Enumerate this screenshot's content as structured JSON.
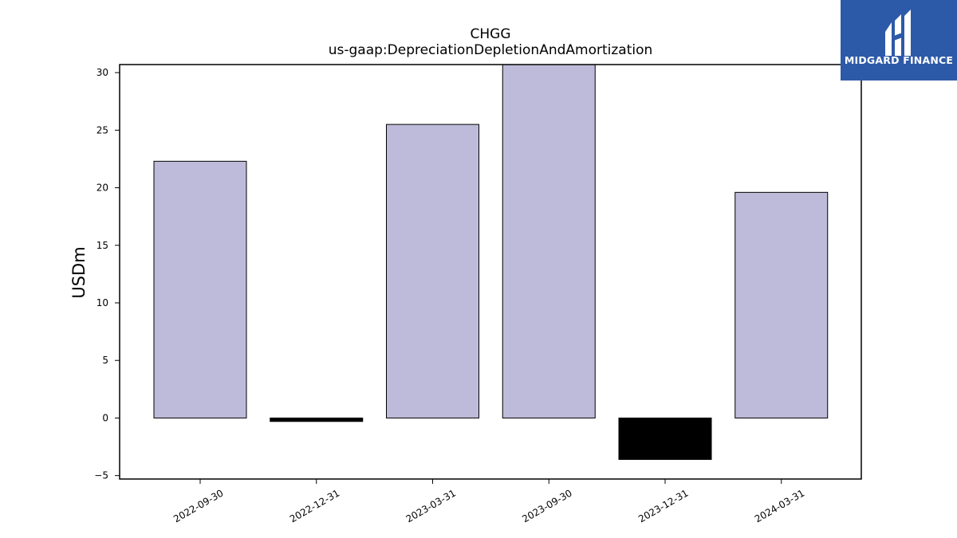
{
  "chart_data": {
    "type": "bar",
    "title": "CHGG",
    "subtitle": "us-gaap:DepreciationDepletionAndAmortization",
    "xlabel": "",
    "ylabel": "USDm",
    "categories": [
      "2022-09-30",
      "2022-12-31",
      "2023-03-31",
      "2023-09-30",
      "2023-12-31",
      "2024-03-31"
    ],
    "values": [
      22.3,
      -0.3,
      25.5,
      30.7,
      -3.6,
      19.6
    ],
    "ylim": [
      -5.3,
      30.7
    ],
    "yticks": [
      -5,
      0,
      5,
      10,
      15,
      20,
      25,
      30
    ],
    "grid": false,
    "colors": {
      "positive": "#bebbda",
      "negative": "#000000",
      "edge": "#000000"
    }
  },
  "logo": {
    "text": "MIDGARD FINANCE",
    "background": "#2d5aa8"
  }
}
